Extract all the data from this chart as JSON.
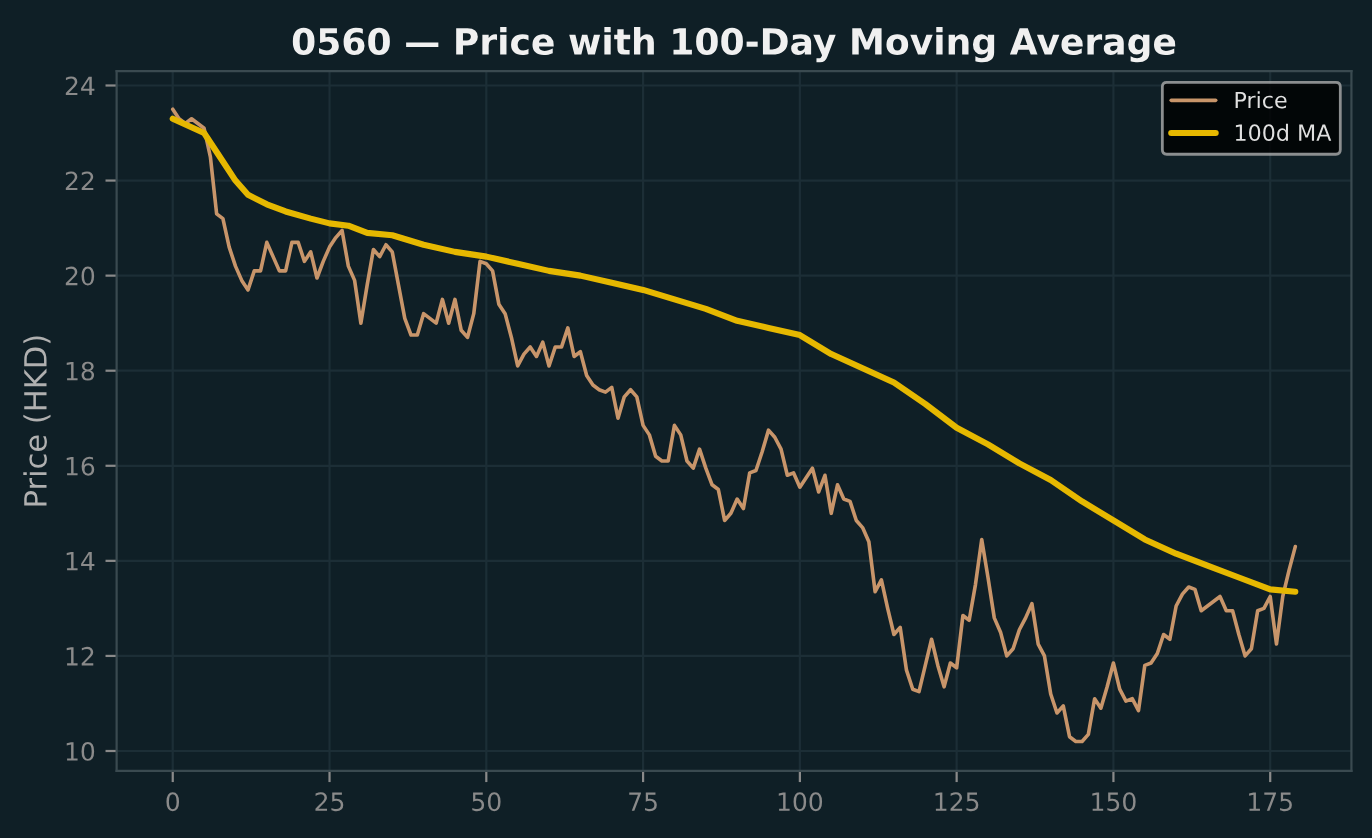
{
  "chart_data": {
    "type": "line",
    "title": "0560 — Price with 100-Day Moving Average",
    "ylabel": "Price (HKD)",
    "xlim": [
      -8.95,
      187.95
    ],
    "ylim": [
      9.58,
      24.3
    ],
    "xticks": [
      0,
      25,
      50,
      75,
      100,
      125,
      150,
      175
    ],
    "yticks": [
      10,
      12,
      14,
      16,
      18,
      20,
      22,
      24
    ],
    "grid": true,
    "legend": "top right",
    "series": [
      {
        "name": "Price",
        "color": "#c8956a",
        "x": [
          0,
          1,
          2,
          3,
          4,
          5,
          6,
          7,
          8,
          9,
          10,
          11,
          12,
          13,
          14,
          15,
          16,
          17,
          18,
          19,
          20,
          21,
          22,
          23,
          24,
          25,
          26,
          27,
          28,
          29,
          30,
          31,
          32,
          33,
          34,
          35,
          36,
          37,
          38,
          39,
          40,
          41,
          42,
          43,
          44,
          45,
          46,
          47,
          48,
          49,
          50,
          51,
          52,
          53,
          54,
          55,
          56,
          57,
          58,
          59,
          60,
          61,
          62,
          63,
          64,
          65,
          66,
          67,
          68,
          69,
          70,
          71,
          72,
          73,
          74,
          75,
          76,
          77,
          78,
          79,
          80,
          81,
          82,
          83,
          84,
          85,
          86,
          87,
          88,
          89,
          90,
          91,
          92,
          93,
          94,
          95,
          96,
          97,
          98,
          99,
          100,
          101,
          102,
          103,
          104,
          105,
          106,
          107,
          108,
          109,
          110,
          111,
          112,
          113,
          114,
          115,
          116,
          117,
          118,
          119,
          120,
          121,
          122,
          123,
          124,
          125,
          126,
          127,
          128,
          129,
          130,
          131,
          132,
          133,
          134,
          135,
          136,
          137,
          138,
          139,
          140,
          141,
          142,
          143,
          144,
          145,
          146,
          147,
          148,
          149,
          150,
          151,
          152,
          153,
          154,
          155,
          156,
          157,
          158,
          159,
          160,
          161,
          162,
          163,
          164,
          165,
          166,
          167,
          168,
          169,
          170,
          171,
          172,
          173,
          174,
          175,
          176,
          177,
          178,
          179
        ],
        "values": [
          23.5,
          23.3,
          23.2,
          23.3,
          23.2,
          23.1,
          22.5,
          21.3,
          21.2,
          20.6,
          20.2,
          19.9,
          19.7,
          20.1,
          20.1,
          20.7,
          20.4,
          20.1,
          20.1,
          20.7,
          20.7,
          20.3,
          20.5,
          19.95,
          20.3,
          20.6,
          20.8,
          20.95,
          20.2,
          19.9,
          19.0,
          19.8,
          20.55,
          20.4,
          20.65,
          20.5,
          19.8,
          19.1,
          18.75,
          18.75,
          19.2,
          19.1,
          19.0,
          19.5,
          19.0,
          19.5,
          18.85,
          18.7,
          19.2,
          20.3,
          20.25,
          20.1,
          19.4,
          19.2,
          18.7,
          18.1,
          18.35,
          18.5,
          18.3,
          18.6,
          18.1,
          18.5,
          18.5,
          18.9,
          18.3,
          18.4,
          17.9,
          17.7,
          17.6,
          17.55,
          17.65,
          17.0,
          17.45,
          17.6,
          17.45,
          16.85,
          16.65,
          16.2,
          16.1,
          16.1,
          16.85,
          16.65,
          16.1,
          15.95,
          16.35,
          15.95,
          15.6,
          15.5,
          14.85,
          15.0,
          15.3,
          15.1,
          15.85,
          15.9,
          16.3,
          16.75,
          16.6,
          16.35,
          15.8,
          15.85,
          15.55,
          15.75,
          15.95,
          15.45,
          15.8,
          15.0,
          15.6,
          15.3,
          15.25,
          14.85,
          14.7,
          14.4,
          13.35,
          13.6,
          13.0,
          12.45,
          12.6,
          11.7,
          11.3,
          11.25,
          11.8,
          12.35,
          11.8,
          11.35,
          11.85,
          11.75,
          12.85,
          12.75,
          13.5,
          14.45,
          13.65,
          12.8,
          12.5,
          12.0,
          12.15,
          12.55,
          12.8,
          13.1,
          12.25,
          12.0,
          11.2,
          10.8,
          10.95,
          10.3,
          10.2,
          10.2,
          10.35,
          11.1,
          10.9,
          11.35,
          11.85,
          11.3,
          11.05,
          11.1,
          10.85,
          11.8,
          11.85,
          12.05,
          12.45,
          12.35,
          13.05,
          13.3,
          13.45,
          13.4,
          12.95,
          13.05,
          13.15,
          13.25,
          12.95,
          12.95,
          12.45,
          12.0,
          12.15,
          12.95,
          13.0,
          13.25,
          12.25,
          13.25,
          13.8,
          14.3
        ]
      },
      {
        "name": "100d MA",
        "color": "#e6b800",
        "x": [
          0,
          5,
          8,
          10,
          12,
          15,
          18,
          22,
          25,
          28,
          31,
          35,
          40,
          45,
          50,
          55,
          60,
          65,
          70,
          75,
          80,
          85,
          90,
          95,
          100,
          105,
          110,
          115,
          120,
          125,
          130,
          135,
          140,
          145,
          150,
          155,
          160,
          165,
          170,
          175,
          179
        ],
        "values": [
          23.3,
          23.0,
          22.4,
          22.0,
          21.7,
          21.5,
          21.35,
          21.2,
          21.1,
          21.05,
          20.9,
          20.85,
          20.65,
          20.5,
          20.4,
          20.25,
          20.1,
          20.0,
          19.85,
          19.7,
          19.5,
          19.3,
          19.05,
          18.9,
          18.75,
          18.35,
          18.05,
          17.75,
          17.3,
          16.8,
          16.45,
          16.05,
          15.7,
          15.25,
          14.85,
          14.45,
          14.15,
          13.9,
          13.65,
          13.4,
          13.35
        ]
      }
    ]
  }
}
